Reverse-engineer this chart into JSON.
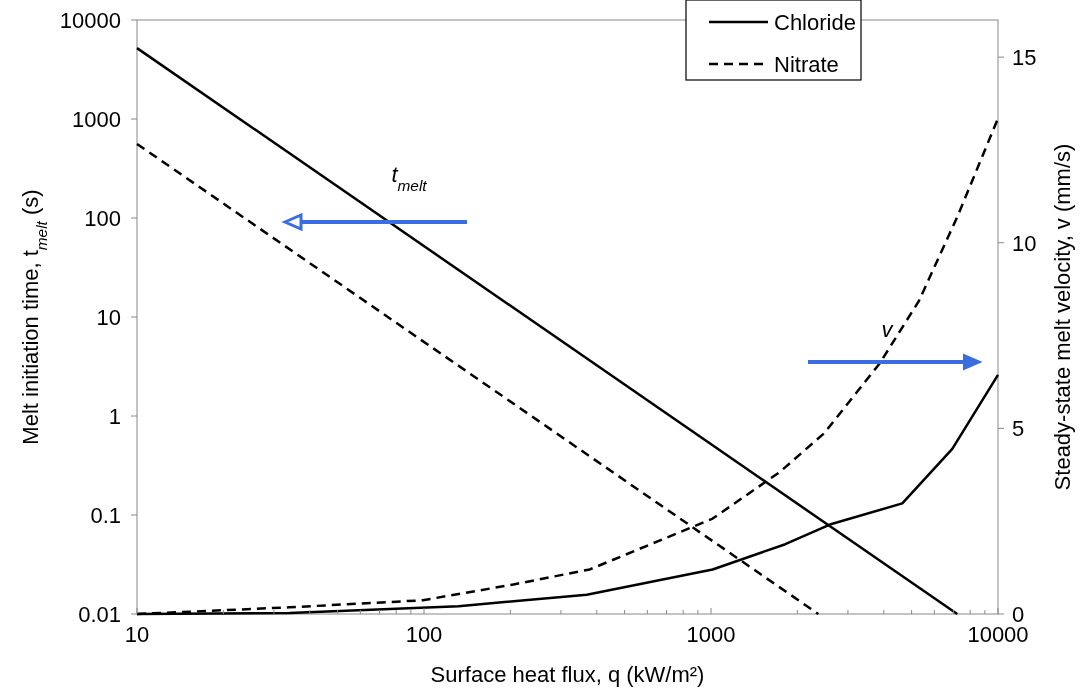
{
  "chart_data": {
    "type": "line",
    "xlabel": "Surface heat flux, q (kW/m²)",
    "ylabel": "Melt initiation time, t$_{melt}$ (s)",
    "y2label": "Steady-state melt velocity, v (mm/s)",
    "log": "xy",
    "grid": false,
    "legend": "top right",
    "xlim": [
      10,
      10000
    ],
    "xticks": [
      10,
      {
        "value": 20,
        "label": null
      },
      {
        "value": 30,
        "label": null
      },
      {
        "value": 40,
        "label": null
      },
      {
        "value": 50,
        "label": null
      },
      {
        "value": 60,
        "label": null
      },
      {
        "value": 70,
        "label": null
      },
      {
        "value": 80,
        "label": null
      },
      {
        "value": 90,
        "label": null
      },
      100,
      {
        "value": 200,
        "label": null
      },
      {
        "value": 300,
        "label": null
      },
      {
        "value": 400,
        "label": null
      },
      {
        "value": 500,
        "label": null
      },
      {
        "value": 600,
        "label": null
      },
      {
        "value": 700,
        "label": null
      },
      {
        "value": 800,
        "label": null
      },
      {
        "value": 900,
        "label": null
      },
      1000,
      {
        "value": 2000,
        "label": null
      },
      {
        "value": 3000,
        "label": null
      },
      {
        "value": 4000,
        "label": null
      },
      {
        "value": 5000,
        "label": null
      },
      {
        "value": 6000,
        "label": null
      },
      {
        "value": 7000,
        "label": null
      },
      {
        "value": 8000,
        "label": null
      },
      {
        "value": 9000,
        "label": null
      },
      10000
    ],
    "ylim": [
      0.01,
      10000
    ],
    "yticks": [
      0.01,
      0.1,
      1,
      10,
      100,
      1000,
      10000
    ],
    "y2lim": [
      0,
      16
    ],
    "y2ticks": [
      0,
      5,
      10,
      15
    ],
    "series": [
      {
        "name": "Chloride",
        "color": "#000000",
        "line_style": "solid",
        "x": [
          10,
          7211
        ],
        "values": [
          5200,
          0.01
        ]
      },
      {
        "name": "Nitrate",
        "color": "#000000",
        "line_style": "dashed",
        "x": [
          10,
          2366
        ],
        "values": [
          560,
          0.01
        ]
      },
      {
        "color": "#000000",
        "line_style": "solid",
        "axis": "y2",
        "x": [
          10,
          34,
          132,
          369,
          1013,
          1815,
          2595,
          4640,
          6930,
          10000
        ],
        "values": [
          0,
          0.03,
          0.21,
          0.52,
          1.2,
          1.88,
          2.41,
          2.98,
          4.45,
          6.44
        ]
      },
      {
        "color": "#000000",
        "line_style": "dashed",
        "axis": "y2",
        "x": [
          10,
          34,
          99,
          203,
          378,
          1013,
          1733,
          2480,
          3870,
          5300,
          7245,
          10000
        ],
        "values": [
          0,
          0.18,
          0.37,
          0.79,
          1.2,
          2.57,
          3.82,
          4.87,
          6.75,
          8.43,
          10.73,
          13.35
        ]
      }
    ],
    "annotations": [
      "t$_{melt}$",
      "v"
    ]
  }
}
